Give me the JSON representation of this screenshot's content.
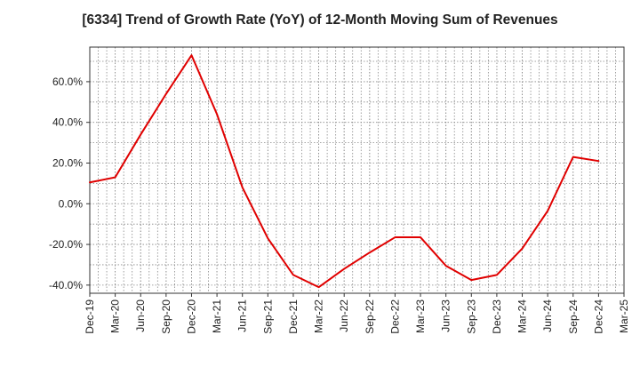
{
  "chart_data": {
    "type": "line",
    "title": "[6334]  Trend of Growth Rate (YoY) of 12-Month Moving Sum of Revenues",
    "xlabel": "",
    "ylabel": "",
    "x_ticks": [
      "Dec-19",
      "Mar-20",
      "Jun-20",
      "Sep-20",
      "Dec-20",
      "Mar-21",
      "Jun-21",
      "Sep-21",
      "Dec-21",
      "Mar-22",
      "Jun-22",
      "Sep-22",
      "Dec-22",
      "Mar-23",
      "Jun-23",
      "Sep-23",
      "Dec-23",
      "Mar-24",
      "Jun-24",
      "Sep-24",
      "Dec-24",
      "Mar-25"
    ],
    "y_ticks": [
      "60.0%",
      "40.0%",
      "20.0%",
      "0.0%",
      "-20.0%",
      "-40.0%"
    ],
    "y_tick_values": [
      60,
      40,
      20,
      0,
      -20,
      -40
    ],
    "ylim": [
      -44,
      77
    ],
    "grid": true,
    "grid_style": "dotted",
    "series": [
      {
        "color": "#e00000",
        "x": [
          "Dec-19",
          "Mar-20",
          "Jun-20",
          "Sep-20",
          "Dec-20",
          "Mar-21",
          "Jun-21",
          "Sep-21",
          "Dec-21",
          "Mar-22",
          "Jun-22",
          "Sep-22",
          "Dec-22",
          "Mar-23",
          "Jun-23",
          "Sep-23",
          "Dec-23",
          "Mar-24",
          "Jun-24",
          "Sep-24",
          "Dec-24"
        ],
        "values": [
          10.5,
          13,
          34,
          54,
          73,
          44,
          8,
          -17,
          -35,
          -41,
          -32,
          -24,
          -16.5,
          -16.5,
          -30.5,
          -37.5,
          -35,
          -22,
          -3.5,
          23,
          21
        ]
      }
    ]
  }
}
